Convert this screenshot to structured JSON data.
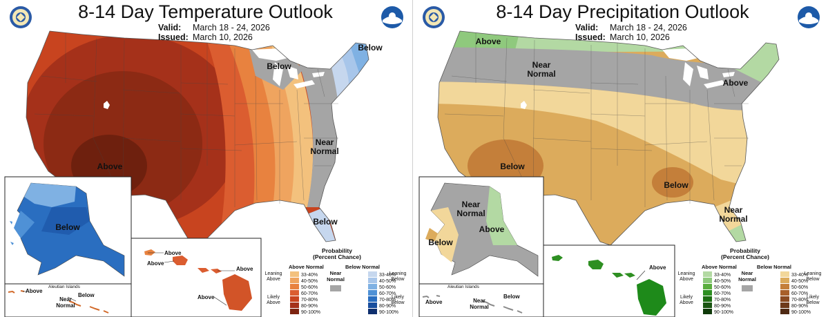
{
  "temperature": {
    "title": "8-14 Day Temperature Outlook",
    "valid_label": "Valid:",
    "valid_value": "March 18 - 24, 2026",
    "issued_label": "Issued:",
    "issued_value": "March 10, 2026",
    "regions": {
      "above_conus": "Above",
      "below_northeast": "Below",
      "below_great_lakes": "Below",
      "near_normal_east": [
        "Near",
        "Normal"
      ],
      "below_southeast": "Below",
      "alaska_below": "Below",
      "hawaii_above_1": "Above",
      "hawaii_above_2": "Above",
      "hawaii_above_3": "Above",
      "hawaii_above_4": "Above",
      "aleutian_label": "Aleutian Islands",
      "aleutian_above": "Above",
      "aleutian_below": "Below",
      "aleutian_near": [
        "Near",
        "Normal"
      ]
    },
    "legend": {
      "title": [
        "Probability",
        "(Percent Chance)"
      ],
      "col1_head": "Above Normal",
      "col2_head": "Below Normal",
      "near_normal": [
        "Near",
        "Normal"
      ],
      "leaning_above": [
        "Leaning",
        "Above"
      ],
      "likely_above": [
        "Likely",
        "Above"
      ],
      "leaning_below": [
        "Leaning",
        "Below"
      ],
      "likely_below": [
        "Likely",
        "Below"
      ],
      "ranges": [
        "33-40%",
        "40-50%",
        "50-60%",
        "60-70%",
        "70-80%",
        "80-90%",
        "90-100%"
      ],
      "above_colors": [
        "#f3c17d",
        "#efa45f",
        "#e8823f",
        "#db5d30",
        "#c8441f",
        "#a5311a",
        "#7d2410"
      ],
      "below_colors": [
        "#c6d7ee",
        "#a8c6ea",
        "#7fb1e3",
        "#4f91d6",
        "#2a6ec0",
        "#184e9e",
        "#0e2f6e"
      ],
      "near_color": "#a5a5a5"
    }
  },
  "precipitation": {
    "title": "8-14 Day Precipitation Outlook",
    "valid_label": "Valid:",
    "valid_value": "March 18 - 24, 2026",
    "issued_label": "Issued:",
    "issued_value": "March 10, 2026",
    "regions": {
      "above_northwest": "Above",
      "near_normal_north": [
        "Near",
        "Normal"
      ],
      "above_northeast": "Above",
      "below_southwest": "Below",
      "below_south": "Below",
      "near_normal_florida": [
        "Near",
        "Normal"
      ],
      "alaska_near": [
        "Near",
        "Normal"
      ],
      "alaska_above": "Above",
      "alaska_below": "Below",
      "hawaii_above": "Above",
      "aleutian_label": "Aleutian Islands",
      "aleutian_above": "Above",
      "aleutian_below": "Below",
      "aleutian_near": [
        "Near",
        "Normal"
      ]
    },
    "legend": {
      "title": [
        "Probability",
        "(Percent Chance)"
      ],
      "col1_head": "Above Normal",
      "col2_head": "Below Normal",
      "near_normal": [
        "Near",
        "Normal"
      ],
      "leaning_above": [
        "Leaning",
        "Above"
      ],
      "likely_above": [
        "Likely",
        "Above"
      ],
      "leaning_below": [
        "Leaning",
        "Below"
      ],
      "likely_below": [
        "Likely",
        "Below"
      ],
      "ranges": [
        "33-40%",
        "40-50%",
        "50-60%",
        "60-70%",
        "70-80%",
        "80-90%",
        "90-100%"
      ],
      "above_colors": [
        "#b3d9a3",
        "#8fc97d",
        "#5aae3e",
        "#2e8f22",
        "#1e6e14",
        "#1a5511",
        "#0f3a0a"
      ],
      "below_colors": [
        "#f2d79a",
        "#dcab5c",
        "#c47f3a",
        "#a85f2a",
        "#8a4a22",
        "#6e3a1b",
        "#4f2a14"
      ],
      "near_color": "#a5a5a5"
    }
  }
}
